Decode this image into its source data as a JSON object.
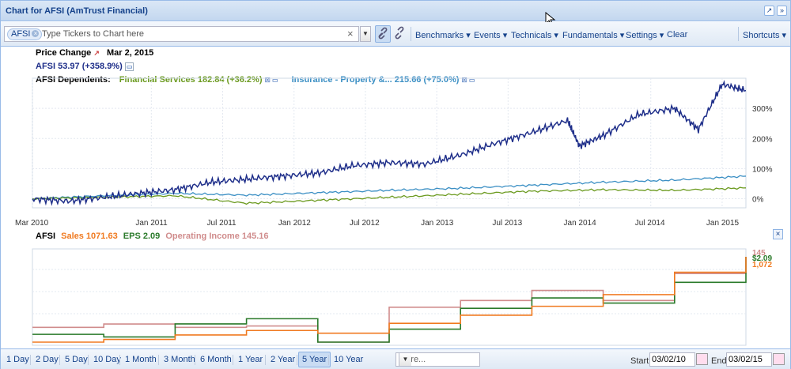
{
  "window": {
    "title": "Chart for AFSI (AmTrust Financial)"
  },
  "toolbar": {
    "ticker_chip": "AFSI",
    "ticker_placeholder": "Type Tickers to Chart here",
    "menus": [
      "Benchmarks",
      "Events",
      "Technicals",
      "Fundamentals",
      "Settings",
      "Clear"
    ],
    "shortcuts": "Shortcuts"
  },
  "header": {
    "price_change_label": "Price Change",
    "date": "Mar 2, 2015",
    "primary": "AFSI 53.97 (+358.9%)",
    "dependents_label": "AFSI Dependents:",
    "dep1": "Financial Services 182.84 (+36.2%)",
    "dep2": "Insurance - Property &... 215.66 (+75.0%)"
  },
  "lower_legend": {
    "ticker": "AFSI",
    "sales": "Sales 1071.63",
    "eps": "EPS 2.09",
    "op_income": "Operating Income 145.16",
    "end_labels": [
      "145",
      "$2.09",
      "1,072"
    ]
  },
  "colors": {
    "afsi": "#1f2f8a",
    "financial_services": "#6b9a1f",
    "insurance": "#3b8fc4",
    "sales": "#f07a20",
    "eps": "#2a7a2a",
    "op_income": "#d08c8c"
  },
  "chart_data": [
    {
      "type": "line",
      "title": "",
      "x_tick_labels": [
        "Mar 2010",
        "Jan 2011",
        "Jul 2011",
        "Jan 2012",
        "Jul 2012",
        "Jan 2013",
        "Jul 2013",
        "Jan 2014",
        "Jul 2014",
        "Jan 2015"
      ],
      "y_tick_labels": [
        "0%",
        "100%",
        "200%",
        "300%"
      ],
      "ylim": [
        -30,
        400
      ],
      "grid": true,
      "series": [
        {
          "name": "AFSI",
          "x": [
            "2010-03",
            "2010-06",
            "2010-09",
            "2010-12",
            "2011-03",
            "2011-06",
            "2011-09",
            "2011-12",
            "2012-03",
            "2012-06",
            "2012-09",
            "2012-12",
            "2013-03",
            "2013-06",
            "2013-09",
            "2013-12",
            "2014-01",
            "2014-03",
            "2014-06",
            "2014-09",
            "2014-11",
            "2015-01",
            "2015-03"
          ],
          "values": [
            0,
            -8,
            5,
            18,
            30,
            55,
            65,
            75,
            85,
            110,
            120,
            115,
            145,
            185,
            220,
            260,
            175,
            210,
            280,
            300,
            230,
            380,
            359
          ]
        },
        {
          "name": "Financial Services",
          "x": [
            "2010-03",
            "2010-09",
            "2011-03",
            "2011-09",
            "2012-03",
            "2012-09",
            "2013-03",
            "2013-09",
            "2014-03",
            "2014-09",
            "2015-03"
          ],
          "values": [
            0,
            5,
            10,
            -15,
            -5,
            5,
            15,
            25,
            30,
            28,
            36
          ]
        },
        {
          "name": "Insurance - Property &...",
          "x": [
            "2010-03",
            "2010-09",
            "2011-03",
            "2011-09",
            "2012-03",
            "2012-09",
            "2013-03",
            "2013-09",
            "2014-03",
            "2014-09",
            "2015-03"
          ],
          "values": [
            0,
            10,
            18,
            12,
            20,
            28,
            35,
            45,
            55,
            62,
            75
          ]
        }
      ]
    },
    {
      "type": "line",
      "title": "",
      "step": true,
      "series": [
        {
          "name": "Sales",
          "x": [
            "2010-03",
            "2010-09",
            "2011-03",
            "2011-09",
            "2012-03",
            "2012-09",
            "2013-03",
            "2013-09",
            "2014-03",
            "2014-09",
            "2015-03"
          ],
          "values": [
            120,
            150,
            200,
            250,
            220,
            330,
            420,
            520,
            650,
            900,
            1072
          ]
        },
        {
          "name": "EPS",
          "x": [
            "2010-03",
            "2010-09",
            "2011-03",
            "2011-09",
            "2012-03",
            "2012-09",
            "2013-03",
            "2013-09",
            "2014-03",
            "2014-09",
            "2015-03"
          ],
          "values": [
            0.6,
            0.55,
            0.8,
            0.9,
            0.45,
            0.7,
            1.1,
            1.3,
            1.2,
            1.6,
            2.09
          ]
        },
        {
          "name": "Operating Income",
          "x": [
            "2010-03",
            "2010-09",
            "2011-03",
            "2011-09",
            "2012-03",
            "2012-09",
            "2013-03",
            "2013-09",
            "2014-03",
            "2014-09",
            "2015-03"
          ],
          "values": [
            40,
            45,
            40,
            42,
            18,
            70,
            80,
            95,
            80,
            120,
            145
          ]
        }
      ]
    }
  ],
  "bottom": {
    "ranges": [
      "1 Day",
      "2 Day",
      "5 Day",
      "10 Day",
      "1 Month",
      "3 Month",
      "6 Month",
      "1 Year",
      "2 Year",
      "5 Year",
      "10 Year"
    ],
    "active_range": "5 Year",
    "more_placeholder": "More...",
    "start_label": "Start",
    "start_value": "03/02/10",
    "end_label": "End",
    "end_value": "03/02/15"
  }
}
